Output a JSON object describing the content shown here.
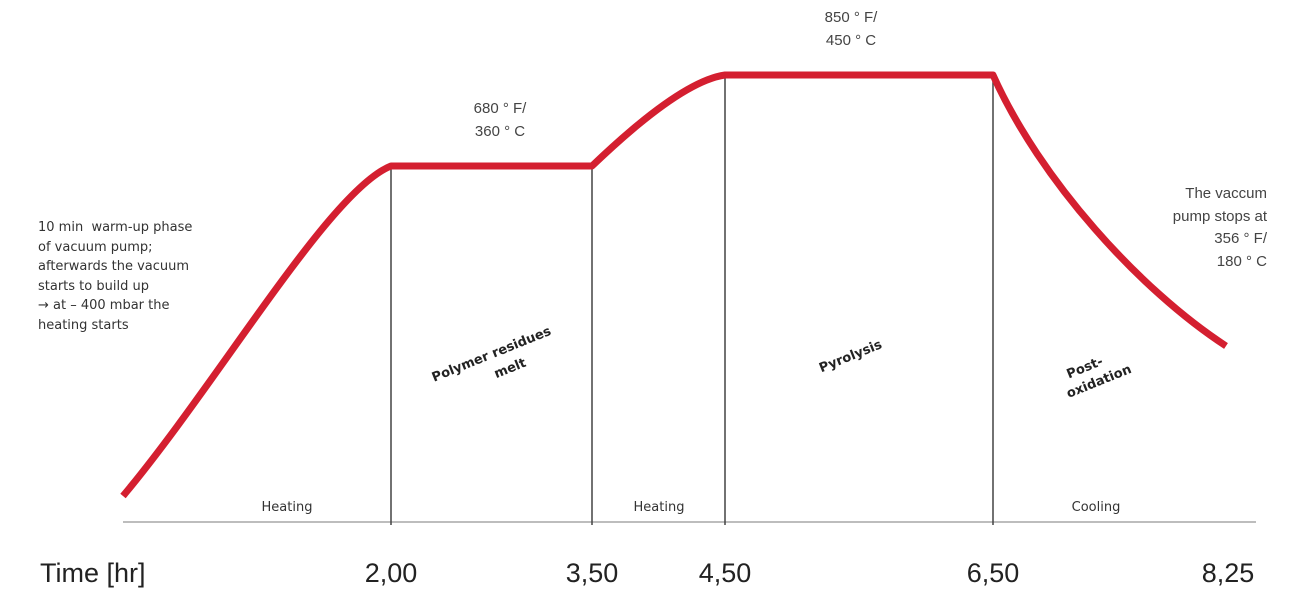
{
  "colors": {
    "curve": "#d41f30",
    "axis": "#bdbdbd",
    "divider": "#444444",
    "text": "#444444"
  },
  "axis": {
    "label": "Time [hr]",
    "ticks": [
      "2,00",
      "3,50",
      "4,50",
      "6,50",
      "8,25"
    ]
  },
  "phases": {
    "heating_1": "Heating",
    "heating_2": "Heating",
    "cooling": "Cooling",
    "polymer_line1": "Polymer residues",
    "polymer_line2": "melt",
    "pyrolysis": "Pyrolysis",
    "post_line1": "Post-",
    "post_line2": "oxidation"
  },
  "temperatures": {
    "first_plateau": "680 ° F/\n360 ° C",
    "second_plateau": "850 ° F/\n450 ° C"
  },
  "notes": {
    "warmup": "10 min  warm-up phase\nof vacuum pump;\nafterwards the vacuum\nstarts to build up\n→ at – 400 mbar the\nheating starts",
    "pump_stop": "The vaccum\npump stops at\n356 ° F/\n180 ° C"
  }
}
